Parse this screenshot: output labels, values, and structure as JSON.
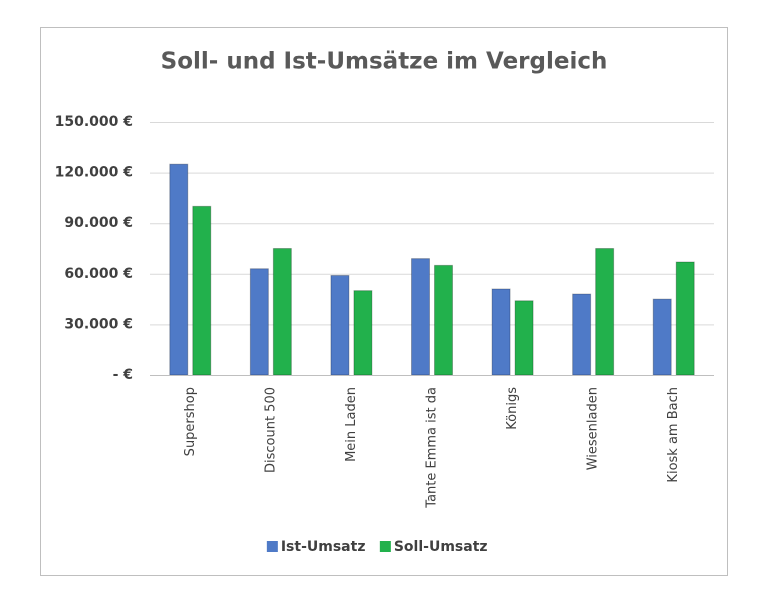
{
  "chart_data": {
    "type": "bar",
    "title": "Soll- und Ist-Umsätze im Vergleich",
    "categories": [
      "Supershop",
      "Discount 500",
      "Mein Laden",
      "Tante Emma ist da",
      "Königs",
      "Wiesenladen",
      "Kiosk am Bach"
    ],
    "series": [
      {
        "name": "Ist-Umsatz",
        "color": "#4f7ac7",
        "values": [
          125000,
          63000,
          59000,
          69000,
          51000,
          48000,
          45000
        ]
      },
      {
        "name": "Soll-Umsatz",
        "color": "#22b14c",
        "values": [
          100000,
          75000,
          50000,
          65000,
          44000,
          75000,
          67000
        ]
      }
    ],
    "ylim": [
      0,
      150000
    ],
    "yticks": [
      {
        "value": 0,
        "label": "-   €"
      },
      {
        "value": 30000,
        "label": "30.000 €"
      },
      {
        "value": 60000,
        "label": "60.000 €"
      },
      {
        "value": 90000,
        "label": "90.000 €"
      },
      {
        "value": 120000,
        "label": "120.000 €"
      },
      {
        "value": 150000,
        "label": "150.000 €"
      }
    ],
    "grid": true,
    "legend": "bottom"
  }
}
